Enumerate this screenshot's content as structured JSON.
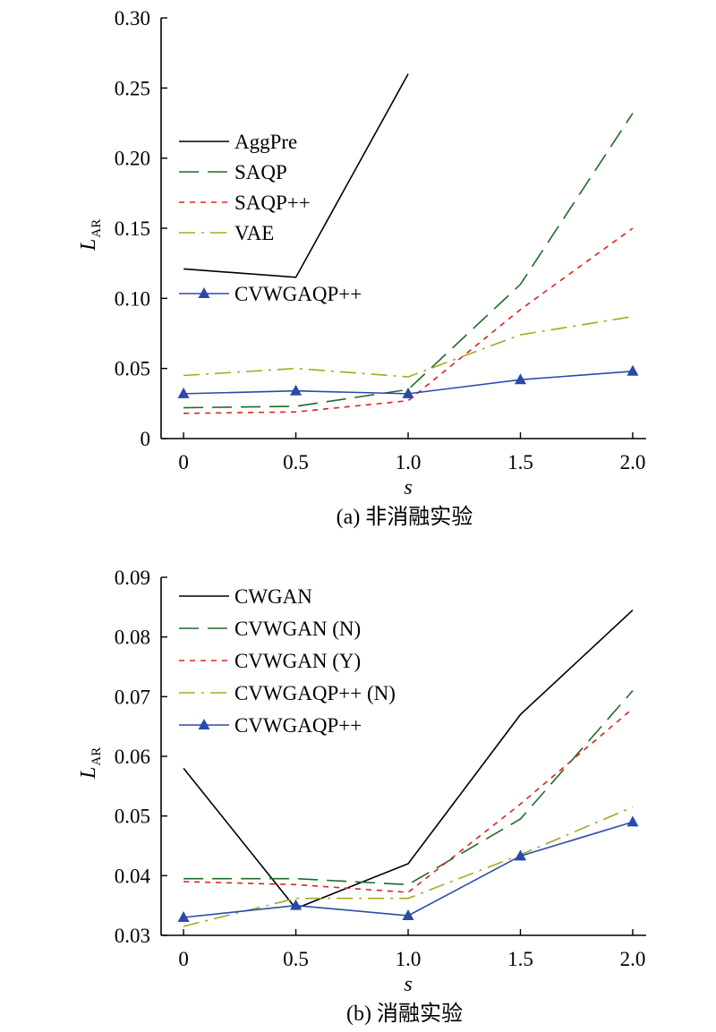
{
  "chart_data": [
    {
      "type": "line",
      "title": "",
      "caption": "(a) 非消融实验",
      "xlabel": "s",
      "ylabel_main": "L",
      "ylabel_sub": "AR",
      "x": [
        0,
        0.5,
        1.0,
        1.5,
        2.0
      ],
      "x_ticks": [
        "0",
        "0.5",
        "1.0",
        "1.5",
        "2.0"
      ],
      "xlim": [
        -0.1,
        2.06
      ],
      "ylim": [
        0,
        0.3
      ],
      "y_ticks": [
        0,
        0.05,
        0.1,
        0.15,
        0.2,
        0.25,
        0.3
      ],
      "y_tick_labels": [
        "0",
        "0.05",
        "0.10",
        "0.15",
        "0.20",
        "0.25",
        "0.30"
      ],
      "grid": false,
      "legend_position": "top-left",
      "series": [
        {
          "name": "AggPre",
          "x": [
            0,
            0.5,
            1.0
          ],
          "values": [
            0.121,
            0.115,
            0.26
          ],
          "color": "#000000",
          "dash": "solid",
          "marker": false
        },
        {
          "name": "SAQP",
          "x": [
            0,
            0.5,
            1.0,
            1.5,
            2.0
          ],
          "values": [
            0.022,
            0.023,
            0.035,
            0.11,
            0.232
          ],
          "color": "#1d6b2a",
          "dash": "long",
          "marker": false
        },
        {
          "name": "SAQP++",
          "x": [
            0,
            0.5,
            1.0,
            1.5,
            2.0
          ],
          "values": [
            0.018,
            0.019,
            0.027,
            0.092,
            0.15
          ],
          "color": "#e02020",
          "dash": "short",
          "marker": false
        },
        {
          "name": "VAE",
          "x": [
            0,
            0.5,
            1.0,
            1.5,
            2.0
          ],
          "values": [
            0.045,
            0.05,
            0.044,
            0.074,
            0.087
          ],
          "color": "#a8a820",
          "dash": "dashdot",
          "marker": false
        },
        {
          "name": "CVWGAQP++",
          "x": [
            0,
            0.5,
            1.0,
            1.5,
            2.0
          ],
          "values": [
            0.032,
            0.034,
            0.032,
            0.042,
            0.048
          ],
          "color": "#2a4aa8",
          "dash": "solid",
          "marker": true
        }
      ]
    },
    {
      "type": "line",
      "title": "",
      "caption": "(b) 消融实验",
      "xlabel": "s",
      "ylabel_main": "L",
      "ylabel_sub": "AR",
      "x": [
        0,
        0.5,
        1.0,
        1.5,
        2.0
      ],
      "x_ticks": [
        "0",
        "0.5",
        "1.0",
        "1.5",
        "2.0"
      ],
      "xlim": [
        -0.1,
        2.06
      ],
      "ylim": [
        0.03,
        0.09
      ],
      "y_ticks": [
        0.03,
        0.04,
        0.05,
        0.06,
        0.07,
        0.08,
        0.09
      ],
      "y_tick_labels": [
        "0.03",
        "0.04",
        "0.05",
        "0.06",
        "0.07",
        "0.08",
        "0.09"
      ],
      "grid": false,
      "legend_position": "top-left",
      "series": [
        {
          "name": "CWGAN",
          "x": [
            0,
            0.5,
            1.0,
            1.5,
            2.0
          ],
          "values": [
            0.058,
            0.0345,
            0.042,
            0.067,
            0.0845
          ],
          "color": "#000000",
          "dash": "solid",
          "marker": false
        },
        {
          "name": "CVWGAN (N)",
          "x": [
            0,
            0.5,
            1.0,
            1.5,
            2.0
          ],
          "values": [
            0.0395,
            0.0395,
            0.0385,
            0.0495,
            0.071
          ],
          "color": "#1d6b2a",
          "dash": "long",
          "marker": false
        },
        {
          "name": "CVWGAN (Y)",
          "x": [
            0,
            0.5,
            1.0,
            1.5,
            2.0
          ],
          "values": [
            0.039,
            0.0385,
            0.0372,
            0.052,
            0.068
          ],
          "color": "#e02020",
          "dash": "short",
          "marker": false
        },
        {
          "name": "CVWGAQP++ (N)",
          "x": [
            0,
            0.5,
            1.0,
            1.5,
            2.0
          ],
          "values": [
            0.0315,
            0.0362,
            0.0362,
            0.0435,
            0.0515
          ],
          "color": "#a8a820",
          "dash": "dashdot",
          "marker": false
        },
        {
          "name": "CVWGAQP++",
          "x": [
            0,
            0.5,
            1.0,
            1.5,
            2.0
          ],
          "values": [
            0.033,
            0.035,
            0.0333,
            0.0433,
            0.049
          ],
          "color": "#2a4aa8",
          "dash": "solid",
          "marker": true
        }
      ]
    }
  ]
}
